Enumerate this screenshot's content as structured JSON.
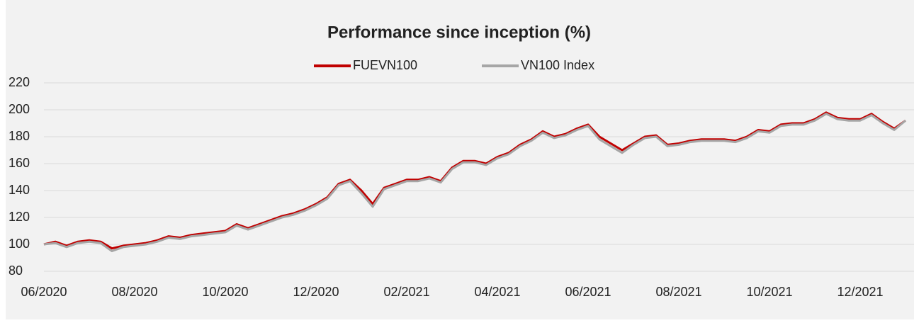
{
  "chart_data": {
    "type": "line",
    "title": "Performance since inception (%)",
    "categories": [
      "06/2020",
      null,
      null,
      null,
      null,
      null,
      null,
      null,
      "08/2020",
      null,
      null,
      null,
      null,
      null,
      null,
      null,
      "10/2020",
      null,
      null,
      null,
      null,
      null,
      null,
      null,
      "12/2020",
      null,
      null,
      null,
      null,
      null,
      null,
      null,
      "02/2021",
      null,
      null,
      null,
      null,
      null,
      null,
      null,
      "04/2021",
      null,
      null,
      null,
      null,
      null,
      null,
      null,
      "06/2021",
      null,
      null,
      null,
      null,
      null,
      null,
      null,
      "08/2021",
      null,
      null,
      null,
      null,
      null,
      null,
      null,
      "10/2021",
      null,
      null,
      null,
      null,
      null,
      null,
      null,
      "12/2021",
      null,
      null,
      null,
      null
    ],
    "series": [
      {
        "name": "FUEVN100",
        "color": "#c00000",
        "values": [
          100,
          102,
          99,
          102,
          103,
          102,
          97,
          99,
          100,
          101,
          103,
          106,
          105,
          107,
          108,
          109,
          110,
          115,
          112,
          115,
          118,
          121,
          123,
          126,
          130,
          135,
          145,
          148,
          140,
          130,
          142,
          145,
          148,
          148,
          150,
          147,
          157,
          162,
          162,
          160,
          165,
          168,
          174,
          178,
          184,
          180,
          182,
          186,
          189,
          180,
          175,
          170,
          175,
          180,
          181,
          174,
          175,
          177,
          178,
          178,
          178,
          177,
          180,
          185,
          184,
          189,
          190,
          190,
          193,
          198,
          194,
          193,
          193,
          197,
          191,
          186,
          192
        ]
      },
      {
        "name": "VN100 Index",
        "color": "#a6a6a6",
        "values": [
          100,
          101,
          98,
          101,
          102,
          101,
          95,
          98,
          99,
          100,
          102,
          105,
          104,
          106,
          107,
          108,
          109,
          114,
          111,
          114,
          117,
          120,
          122,
          125,
          129,
          134,
          144,
          147,
          138,
          128,
          141,
          144,
          147,
          147,
          149,
          146,
          156,
          161,
          161,
          159,
          164,
          167,
          173,
          177,
          183,
          179,
          181,
          185,
          188,
          178,
          173,
          168,
          174,
          179,
          180,
          173,
          174,
          176,
          177,
          177,
          177,
          176,
          179,
          184,
          183,
          188,
          189,
          189,
          192,
          197,
          193,
          192,
          192,
          196,
          190,
          185,
          192
        ]
      }
    ],
    "ylim": [
      80,
      220
    ],
    "yticks": [
      80,
      100,
      120,
      140,
      160,
      180,
      200,
      220
    ],
    "grid": true,
    "legend": "top"
  }
}
